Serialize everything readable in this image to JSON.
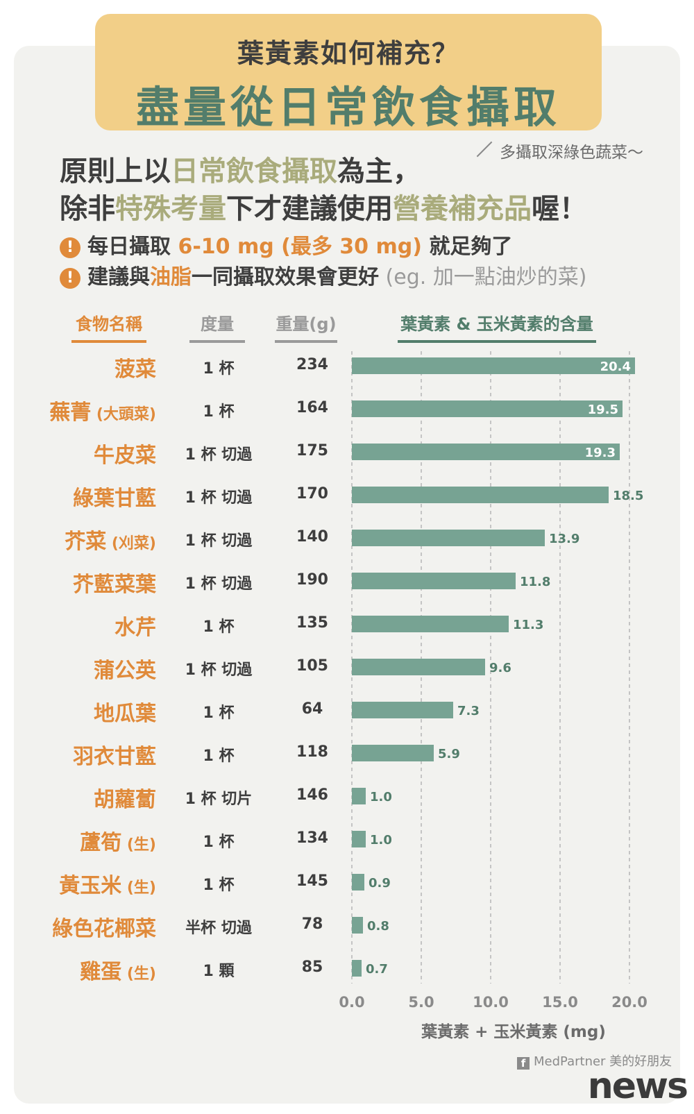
{
  "header": {
    "subtitle": "葉黃素如何補充？",
    "title": "盡量從日常飲食攝取",
    "side_note": "多攝取深綠色蔬菜～"
  },
  "principle": {
    "line1": [
      "原則上以",
      "日常飲食攝取",
      "為主，"
    ],
    "line2": [
      "除非",
      "特殊考量",
      "下才建議使用",
      "營養補充品",
      "喔！"
    ]
  },
  "bullets": [
    {
      "icon": "exclamation-icon",
      "parts": [
        "每日攝取 ",
        "6-10 mg (最多 30 mg)",
        " 就足夠了"
      ]
    },
    {
      "icon": "exclamation-icon",
      "parts": [
        "建議與",
        "油脂",
        "一同攝取效果會更好",
        " (eg. 加一點油炒的菜)"
      ]
    }
  ],
  "columns": {
    "food": "食物名稱",
    "measure": "度量",
    "weight": "重量(g)",
    "content": "葉黃素 & 玉米黃素的含量"
  },
  "colors": {
    "bar": "#77a393",
    "food_text": "#e08a3a",
    "banner": "#f2cf88",
    "title_green": "#527d6b"
  },
  "chart_data": {
    "type": "bar",
    "orientation": "horizontal",
    "xlabel": "葉黃素 + 玉米黃素 (mg)",
    "xlim": [
      0,
      20
    ],
    "xticks": [
      "0.0",
      "5.0",
      "10.0",
      "15.0",
      "20.0"
    ],
    "categories": [
      "菠菜",
      "蕪菁",
      "牛皮菜",
      "綠葉甘藍",
      "芥菜",
      "芥藍菜葉",
      "水芹",
      "蒲公英",
      "地瓜葉",
      "羽衣甘藍",
      "胡蘿蔔",
      "蘆筍",
      "黃玉米",
      "綠色花椰菜",
      "雞蛋"
    ],
    "category_notes": [
      "",
      "(大頭菜)",
      "",
      "",
      "(刈菜)",
      "",
      "",
      "",
      "",
      "",
      "",
      "(生)",
      "(生)",
      "",
      "(生)"
    ],
    "measures": [
      "1 杯",
      "1 杯",
      "1 杯 切過",
      "1 杯 切過",
      "1 杯 切過",
      "1 杯 切過",
      "1 杯",
      "1 杯 切過",
      "1 杯",
      "1 杯",
      "1 杯 切片",
      "1 杯",
      "1 杯",
      "半杯 切過",
      "1 顆"
    ],
    "weights": [
      "234",
      "164",
      "175",
      "170",
      "140",
      "190",
      "135",
      "105",
      "64",
      "118",
      "146",
      "134",
      "145",
      "78",
      "85"
    ],
    "values": [
      20.4,
      19.5,
      19.3,
      18.5,
      13.9,
      11.8,
      11.3,
      9.6,
      7.3,
      5.9,
      1.0,
      1.0,
      0.9,
      0.8,
      0.7
    ],
    "value_labels": [
      "20.4",
      "19.5",
      "19.3",
      "18.5",
      "13.9",
      "11.8",
      "11.3",
      "9.6",
      "7.3",
      "5.9",
      "1.0",
      "1.0",
      "0.9",
      "0.8",
      "0.7"
    ],
    "grid": true
  },
  "footer": {
    "credit": "MedPartner 美的好朋友",
    "watermark": "news"
  }
}
